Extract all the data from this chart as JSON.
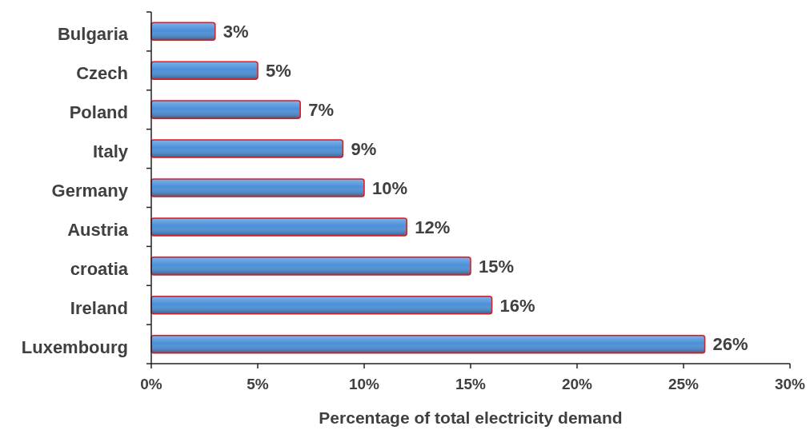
{
  "chart_data": {
    "type": "bar",
    "orientation": "horizontal",
    "xlabel": "Percentage of total electricity demand",
    "categories": [
      "Bulgaria",
      "Czech",
      "Poland",
      "Italy",
      "Germany",
      "Austria",
      "croatia",
      "Ireland",
      "Luxembourg"
    ],
    "values": [
      3,
      5,
      7,
      9,
      10,
      12,
      15,
      16,
      26
    ],
    "value_labels": [
      "3%",
      "5%",
      "7%",
      "9%",
      "10%",
      "12%",
      "15%",
      "16%",
      "26%"
    ],
    "color": "#4a90d9",
    "xlim": [
      0,
      30
    ],
    "xticks": [
      {
        "value": 0,
        "label": "0%"
      },
      {
        "value": 5,
        "label": "5%"
      },
      {
        "value": 10,
        "label": "10%"
      },
      {
        "value": 15,
        "label": "15%"
      },
      {
        "value": 20,
        "label": "20%"
      },
      {
        "value": 25,
        "label": "25%"
      },
      {
        "value": 30,
        "label": "30%"
      }
    ],
    "grid": false
  }
}
